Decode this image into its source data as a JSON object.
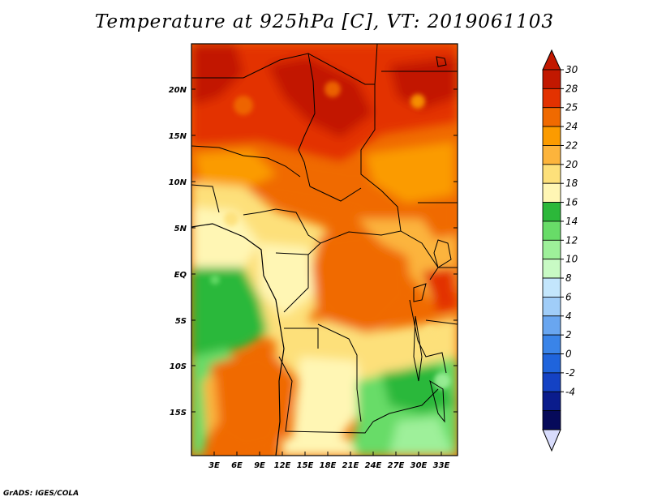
{
  "title": "Temperature at 925hPa [C], VT: 2019061103",
  "credit": "GrADS: IGES/COLA",
  "axes": {
    "lat_labels": [
      "20N",
      "15N",
      "10N",
      "5N",
      "EQ",
      "5S",
      "10S",
      "15S"
    ],
    "lon_labels": [
      "3E",
      "6E",
      "9E",
      "12E",
      "15E",
      "18E",
      "21E",
      "24E",
      "27E",
      "30E",
      "33E"
    ]
  },
  "colorbar": {
    "labels": [
      "30",
      "28",
      "25",
      "24",
      "22",
      "20",
      "18",
      "16",
      "14",
      "12",
      "10",
      "8",
      "6",
      "4",
      "2",
      "0",
      "-2",
      "-4"
    ],
    "colors": [
      "#c21800",
      "#e33200",
      "#f06a00",
      "#fb9b00",
      "#fcb43c",
      "#fde07a",
      "#fff6b4",
      "#2cb83a",
      "#68dc68",
      "#9ef09a",
      "#c8fac4",
      "#c3e6fc",
      "#a0cdf8",
      "#69a6f0",
      "#3a84e8",
      "#1f64dc",
      "#1442c4",
      "#0a1c8c",
      "#060a5a"
    ],
    "top_arrow_color": "#c21800",
    "bottom_arrow_color": "#d8dcfc"
  }
}
